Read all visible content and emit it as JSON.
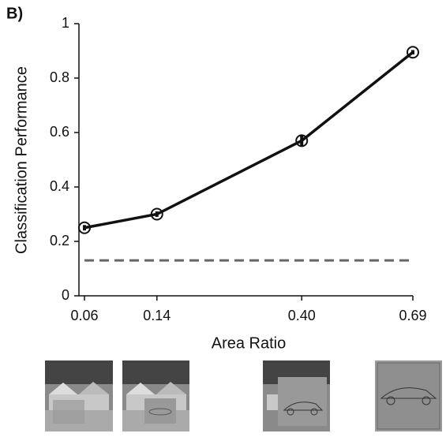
{
  "chart_data": {
    "type": "line",
    "panel_label": "B)",
    "ylabel": "Classification Performance",
    "xlabel": "Area Ratio",
    "x": [
      0.06,
      0.14,
      0.4,
      0.69
    ],
    "values": [
      0.25,
      0.3,
      0.57,
      0.895
    ],
    "errors": [
      0.01,
      0.01,
      0.02,
      0.008
    ],
    "color": "#111111",
    "chance_level": 0.13,
    "chance_color": "#666666",
    "xscale": "sqrt",
    "xlim": [
      0.06,
      0.69
    ],
    "xticks": [
      0.06,
      0.14,
      {
        "value": 0.4,
        "label": "0.40"
      },
      0.69
    ],
    "ylim": [
      0,
      1
    ],
    "yticks": [
      0,
      0.2,
      0.4,
      0.6,
      0.8,
      1
    ]
  }
}
